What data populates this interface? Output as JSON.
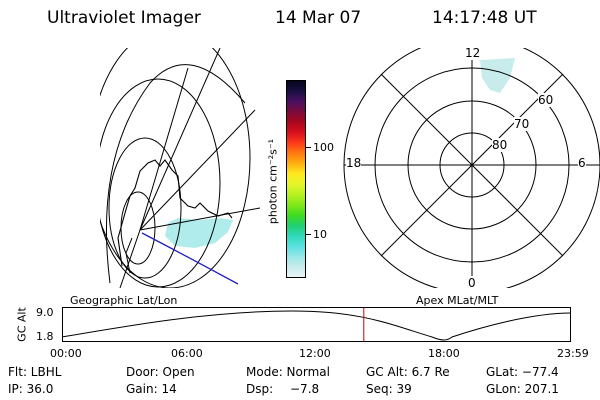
{
  "header": {
    "title": "Ultraviolet Imager",
    "date": "14 Mar 07",
    "time": "14:17:48 UT"
  },
  "colorbar": {
    "label": "photon cm⁻²s⁻¹",
    "ticks": [
      "100",
      "10"
    ],
    "colors": [
      "#05051e",
      "#1a0f44",
      "#4a1060",
      "#7a0a3a",
      "#a8081c",
      "#d6101c",
      "#ff3a1a",
      "#ff7a10",
      "#ffb010",
      "#ffe820",
      "#e6f62a",
      "#b8f020",
      "#80e818",
      "#40dc20",
      "#20d070",
      "#30d8b8",
      "#58e0e0",
      "#98e6e6",
      "#c8ecec",
      "#e8f4f4"
    ]
  },
  "geographic_panel": {
    "label": "Geographic Lat/Lon"
  },
  "polar_panel": {
    "label": "Apex MLat/MLT",
    "lat_labels": [
      "60",
      "70",
      "80"
    ],
    "mlt_labels": {
      "top": "12",
      "bottom": "0",
      "left": "18",
      "right": "6"
    }
  },
  "timeline": {
    "axis_label": "GC Alt",
    "y_top": "9.0",
    "y_bottom": "1.8",
    "x_labels": [
      "00:00",
      "06:00",
      "12:00",
      "18:00",
      "23:59"
    ],
    "current_time_fraction": 0.594
  },
  "footer": {
    "row1": {
      "flt": "Flt: LBHL",
      "door": "Door: Open",
      "mode": "Mode: Normal",
      "gc_alt": "GC Alt: 6.7 Re",
      "glat": "GLat: −77.4"
    },
    "row2": {
      "ip": "IP: 36.0",
      "gain": "Gain: 14",
      "dsp_label": "Dsp:",
      "dsp_value": "−7.8",
      "seq": "Seq: 39",
      "glon": "GLon: 207.1"
    }
  }
}
